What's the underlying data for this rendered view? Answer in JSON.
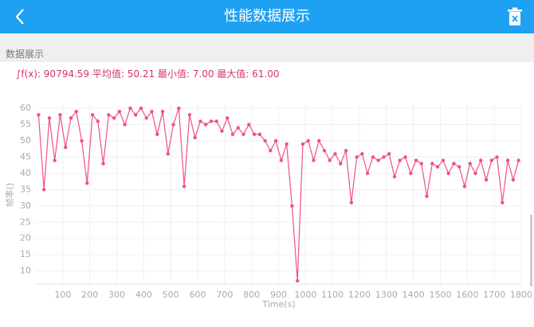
{
  "header": {
    "title": "性能数据展示"
  },
  "section_label": "数据展示",
  "summary": "∫f(x): 90794.59 平均值: 50.21 最小值: 7.00 最大值: 61.00",
  "chart_data": {
    "type": "line",
    "y_label": "帧率()",
    "x_label": "Time(s)",
    "x": [
      10,
      30,
      50,
      70,
      90,
      110,
      130,
      150,
      170,
      190,
      210,
      230,
      250,
      270,
      290,
      310,
      330,
      350,
      370,
      390,
      410,
      430,
      450,
      470,
      490,
      510,
      530,
      550,
      570,
      590,
      610,
      630,
      650,
      670,
      690,
      710,
      730,
      750,
      770,
      790,
      810,
      830,
      850,
      870,
      890,
      910,
      930,
      950,
      970,
      990,
      1010,
      1030,
      1050,
      1070,
      1090,
      1110,
      1130,
      1150,
      1170,
      1190,
      1210,
      1230,
      1250,
      1270,
      1290,
      1310,
      1330,
      1350,
      1370,
      1390,
      1410,
      1430,
      1450,
      1470,
      1490,
      1510,
      1530,
      1550,
      1570,
      1590,
      1610,
      1630,
      1650,
      1670,
      1690,
      1710,
      1730,
      1750,
      1770,
      1790
    ],
    "series": [
      {
        "name": "帧率",
        "color": "#f0508c",
        "values": [
          58,
          35,
          57,
          44,
          58,
          48,
          57,
          59,
          50,
          37,
          58,
          56,
          43,
          58,
          57,
          59,
          55,
          60,
          58,
          60,
          57,
          59,
          52,
          59,
          46,
          55,
          60,
          36,
          58,
          51,
          56,
          55,
          56,
          56,
          53,
          57,
          52,
          54,
          52,
          55,
          52,
          52,
          50,
          47,
          50,
          44,
          49,
          30,
          7,
          49,
          50,
          44,
          50,
          47,
          44,
          46,
          43,
          47,
          31,
          45,
          46,
          40,
          45,
          44,
          45,
          46,
          39,
          44,
          45,
          40,
          44,
          43,
          33,
          43,
          42,
          44,
          40,
          43,
          42,
          36,
          43,
          40,
          44,
          38,
          44,
          45,
          31,
          44,
          38,
          44
        ]
      }
    ],
    "xlim": [
      0,
      1800
    ],
    "ylim": [
      6,
      61
    ],
    "xticks": [
      100,
      200,
      300,
      400,
      500,
      600,
      700,
      800,
      900,
      1000,
      1100,
      1200,
      1300,
      1400,
      1500,
      1600,
      1700,
      1800
    ],
    "yticks": [
      10,
      15,
      20,
      25,
      30,
      35,
      40,
      45,
      50,
      55,
      60
    ],
    "grid": true
  }
}
